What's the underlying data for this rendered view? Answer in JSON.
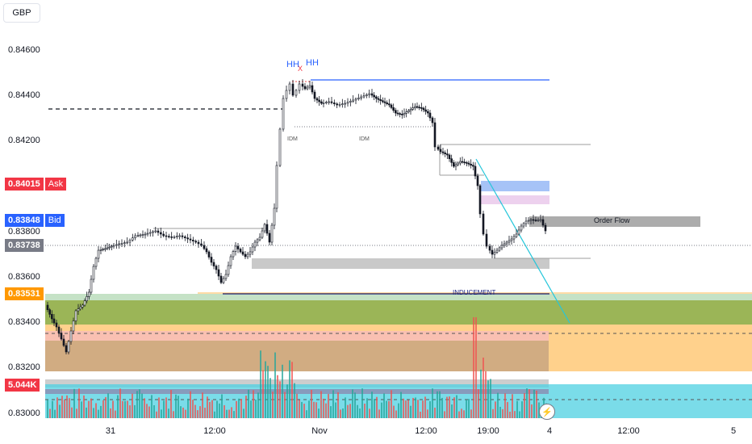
{
  "currency": "GBP",
  "price_axis": {
    "ticks": [
      "0.84600",
      "0.84400",
      "0.84200",
      "0.83800",
      "0.83600",
      "0.83400",
      "0.83200",
      "0.83000"
    ]
  },
  "badges": {
    "ask": {
      "value": "0.84015",
      "label": "Ask",
      "color": "#f23645"
    },
    "bid": {
      "value": "0.83848",
      "label": "Bid",
      "color": "#2962ff"
    },
    "last": {
      "value": "0.83738",
      "color": "#787b86"
    },
    "level": {
      "value": "0.83531",
      "color": "#ff9800"
    },
    "volume": {
      "value": "5.044K",
      "color": "#f23645"
    }
  },
  "time_axis": {
    "ticks": [
      "31",
      "12:00",
      "Nov",
      "12:00",
      "19:00",
      "4",
      "12:00",
      "5"
    ]
  },
  "annotations": {
    "hh_left": "HH",
    "hh_right": "HH",
    "x_mark": "X",
    "idm_left": "IDM",
    "idm_right": "IDM",
    "order_flow": "Order Flow",
    "inducement": "INDUCEMENT"
  },
  "colors": {
    "up": "#26a69a",
    "down": "#ef5350",
    "candle": "#131722",
    "blue_line": "#2962ff",
    "cyan_line": "#26c6da"
  },
  "icons": [
    "lightning-icon"
  ]
}
